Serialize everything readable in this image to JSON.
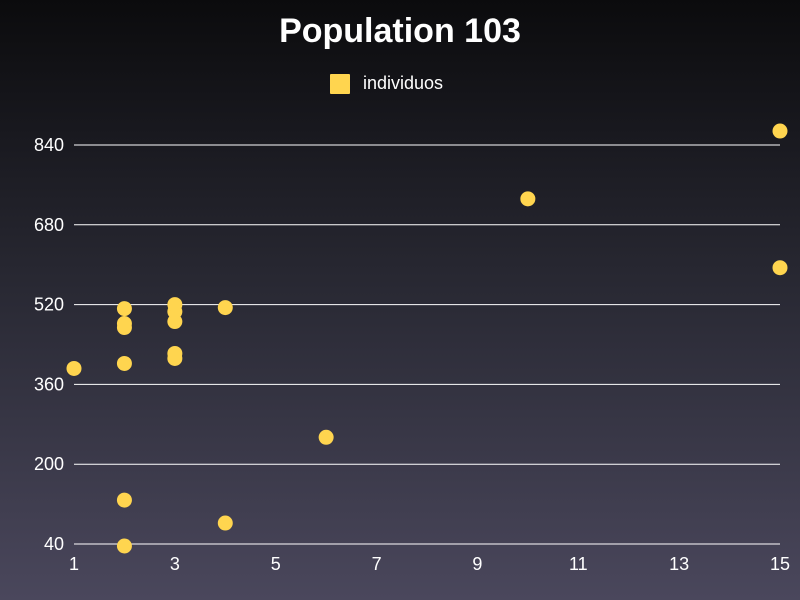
{
  "chart_data": {
    "type": "scatter",
    "title": "Population 103",
    "xlabel": "",
    "ylabel": "",
    "xlim": [
      1,
      15
    ],
    "ylim": [
      40,
      840
    ],
    "x_ticks": [
      "1",
      "3",
      "5",
      "7",
      "9",
      "11",
      "13",
      "15"
    ],
    "y_ticks": [
      "40",
      "200",
      "360",
      "520",
      "680",
      "840"
    ],
    "grid": true,
    "legend_position": "top-center",
    "series": [
      {
        "name": "individuos",
        "color": "#ffd54f",
        "points": [
          {
            "x": 1,
            "y": 392
          },
          {
            "x": 2,
            "y": 36
          },
          {
            "x": 2,
            "y": 128
          },
          {
            "x": 2,
            "y": 402
          },
          {
            "x": 2,
            "y": 474
          },
          {
            "x": 2,
            "y": 482
          },
          {
            "x": 2,
            "y": 512
          },
          {
            "x": 3,
            "y": 412
          },
          {
            "x": 3,
            "y": 422
          },
          {
            "x": 3,
            "y": 486
          },
          {
            "x": 3,
            "y": 506
          },
          {
            "x": 3,
            "y": 520
          },
          {
            "x": 4,
            "y": 82
          },
          {
            "x": 4,
            "y": 514
          },
          {
            "x": 6,
            "y": 254
          },
          {
            "x": 10,
            "y": 732
          },
          {
            "x": 15,
            "y": 594
          },
          {
            "x": 15,
            "y": 868
          }
        ]
      }
    ]
  }
}
